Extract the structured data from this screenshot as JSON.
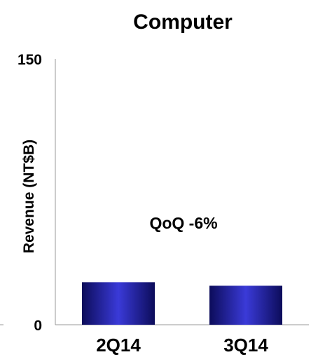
{
  "chart_data": {
    "type": "bar",
    "title": "Computer",
    "ylabel": "Revenue (NT$B)",
    "xlabel": "",
    "categories": [
      "2Q14",
      "3Q14"
    ],
    "values": [
      24,
      22
    ],
    "ylim": [
      0,
      150
    ],
    "yticks": [
      "0",
      "150"
    ],
    "annotation": "QoQ -6%",
    "bar_color": "#2a2ab0",
    "bar_edge_color": "#0c0c5a",
    "grid": false,
    "legend": "none"
  }
}
